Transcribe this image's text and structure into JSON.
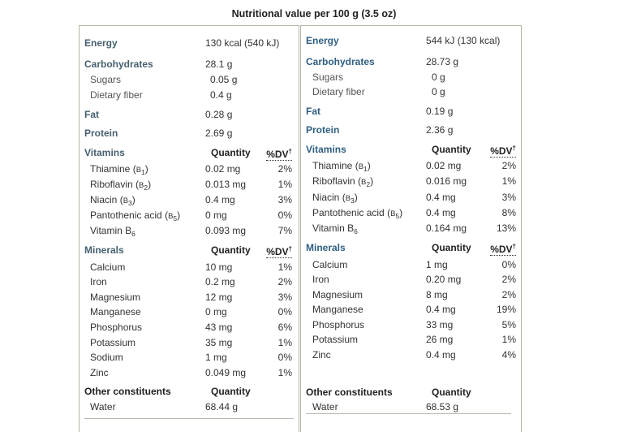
{
  "title": "Nutritional value per 100 g (3.5 oz)",
  "dv_label": "%DV",
  "dv_mark": "†",
  "quantity_label": "Quantity",
  "panels": [
    {
      "id": "left",
      "rows": [
        {
          "kind": "hdr",
          "name": "Energy",
          "qty": "130 kcal (540 kJ)"
        },
        {
          "kind": "hdr",
          "name": "Carbohydrates",
          "qty": "28.1 g"
        },
        {
          "kind": "sub",
          "name": "Sugars",
          "qty": "0.05 g"
        },
        {
          "kind": "sub",
          "name": "Dietary fiber",
          "qty": "0.4 g"
        },
        {
          "kind": "hdr",
          "name": "Fat",
          "qty": "0.28 g"
        },
        {
          "kind": "hdr",
          "name": "Protein",
          "qty": "2.69 g"
        },
        {
          "kind": "section",
          "name": "Vitamins"
        },
        {
          "kind": "item",
          "name": "Thiamine",
          "code": "B",
          "sub": "1",
          "paren": true,
          "qty": "0.02 mg",
          "dv": "2%"
        },
        {
          "kind": "item",
          "name": "Riboflavin",
          "code": "B",
          "sub": "2",
          "paren": true,
          "qty": "0.013 mg",
          "dv": "1%"
        },
        {
          "kind": "item",
          "name": "Niacin",
          "code": "B",
          "sub": "3",
          "paren": true,
          "qty": "0.4 mg",
          "dv": "3%"
        },
        {
          "kind": "item",
          "name": "Pantothenic acid",
          "code": "B",
          "sub": "5",
          "paren": true,
          "qty": "0 mg",
          "dv": "0%"
        },
        {
          "kind": "item",
          "name": "Vitamin B",
          "sub": "6",
          "qty": "0.093 mg",
          "dv": "7%"
        },
        {
          "kind": "section",
          "name": "Minerals"
        },
        {
          "kind": "item",
          "name": "Calcium",
          "qty": "10 mg",
          "dv": "1%"
        },
        {
          "kind": "item",
          "name": "Iron",
          "qty": "0.2 mg",
          "dv": "2%"
        },
        {
          "kind": "item",
          "name": "Magnesium",
          "qty": "12 mg",
          "dv": "3%"
        },
        {
          "kind": "item",
          "name": "Manganese",
          "qty": "0 mg",
          "dv": "0%"
        },
        {
          "kind": "item",
          "name": "Phosphorus",
          "qty": "43 mg",
          "dv": "6%"
        },
        {
          "kind": "item",
          "name": "Potassium",
          "qty": "35 mg",
          "dv": "1%"
        },
        {
          "kind": "item",
          "name": "Sodium",
          "qty": "1 mg",
          "dv": "0%"
        },
        {
          "kind": "item",
          "name": "Zinc",
          "qty": "0.049 mg",
          "dv": "1%"
        },
        {
          "kind": "other",
          "name": "Other constituents"
        },
        {
          "kind": "item",
          "name": "Water",
          "qty": "68.44 g"
        }
      ]
    },
    {
      "id": "right",
      "rows": [
        {
          "kind": "hdr",
          "name": "Energy",
          "qty": "544 kJ (130 kcal)"
        },
        {
          "kind": "hdr",
          "name": "Carbohydrates",
          "qty": "28.73 g"
        },
        {
          "kind": "sub",
          "name": "Sugars",
          "qty": "0 g"
        },
        {
          "kind": "sub",
          "name": "Dietary fiber",
          "qty": "0 g"
        },
        {
          "kind": "hdr",
          "name": "Fat",
          "qty": "0.19 g"
        },
        {
          "kind": "hdr",
          "name": "Protein",
          "qty": "2.36 g"
        },
        {
          "kind": "section",
          "name": "Vitamins"
        },
        {
          "kind": "item",
          "name": "Thiamine",
          "code": "B",
          "sub": "1",
          "paren": true,
          "qty": "0.02 mg",
          "dv": "2%"
        },
        {
          "kind": "item",
          "name": "Riboflavin",
          "code": "B",
          "sub": "2",
          "paren": true,
          "qty": "0.016 mg",
          "dv": "1%"
        },
        {
          "kind": "item",
          "name": "Niacin",
          "code": "B",
          "sub": "3",
          "paren": true,
          "qty": "0.4 mg",
          "dv": "3%"
        },
        {
          "kind": "item",
          "name": "Pantothenic acid",
          "code": "B",
          "sub": "5",
          "paren": true,
          "qty": "0.4 mg",
          "dv": "8%"
        },
        {
          "kind": "item",
          "name": "Vitamin B",
          "sub": "6",
          "qty": "0.164 mg",
          "dv": "13%"
        },
        {
          "kind": "section",
          "name": "Minerals"
        },
        {
          "kind": "item",
          "name": "Calcium",
          "qty": "1 mg",
          "dv": "0%"
        },
        {
          "kind": "item",
          "name": "Iron",
          "qty": "0.20 mg",
          "dv": "2%"
        },
        {
          "kind": "item",
          "name": "Magnesium",
          "qty": "8 mg",
          "dv": "2%"
        },
        {
          "kind": "item",
          "name": "Manganese",
          "qty": "0.4 mg",
          "dv": "19%"
        },
        {
          "kind": "item",
          "name": "Phosphorus",
          "qty": "33 mg",
          "dv": "5%"
        },
        {
          "kind": "item",
          "name": "Potassium",
          "qty": "26 mg",
          "dv": "1%"
        },
        {
          "kind": "item",
          "name": "Zinc",
          "qty": "0.4 mg",
          "dv": "4%"
        },
        {
          "kind": "other",
          "name": "Other constituents"
        },
        {
          "kind": "item",
          "name": "Water",
          "qty": "68.53 g"
        }
      ]
    }
  ]
}
